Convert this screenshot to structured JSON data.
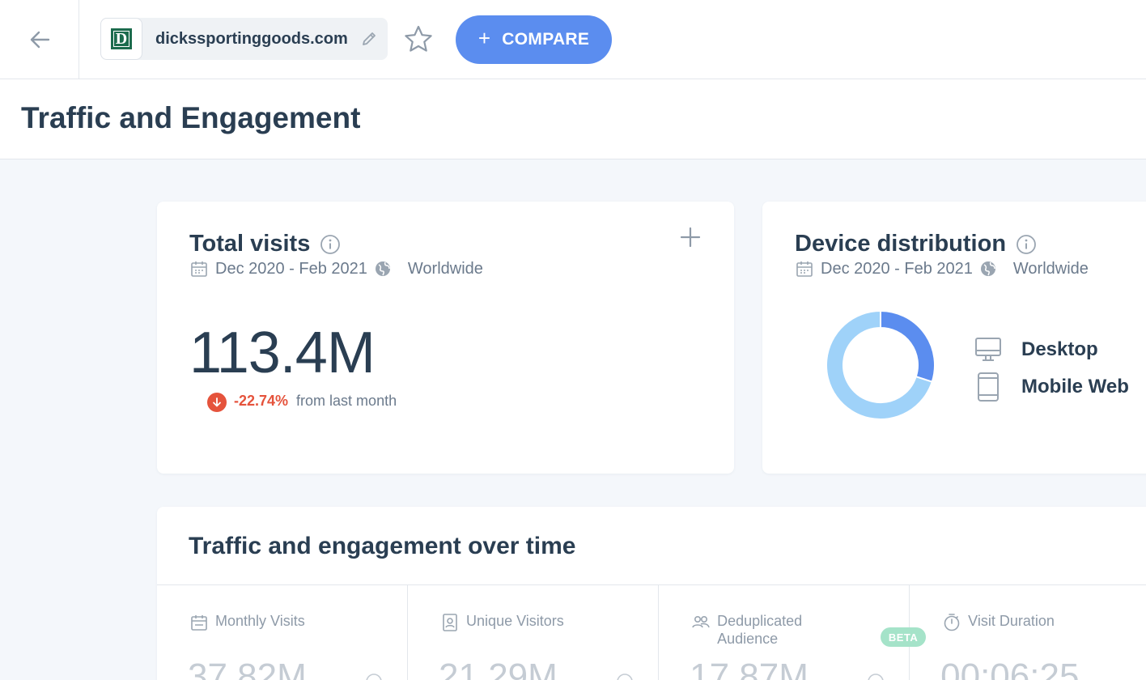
{
  "header": {
    "site_name": "dickssportinggoods.com",
    "favicon_letter": "D",
    "compare_label": "COMPARE"
  },
  "page_title": "Traffic and Engagement",
  "total_visits": {
    "title": "Total visits",
    "date_range": "Dec 2020 - Feb 2021",
    "region": "Worldwide",
    "value": "113.4M",
    "change_pct": "-22.74%",
    "change_text": "from last month"
  },
  "device_distribution": {
    "title": "Device distribution",
    "date_range": "Dec 2020 - Feb 2021",
    "region": "Worldwide",
    "items": [
      {
        "label": "Desktop",
        "color": "#5b8def"
      },
      {
        "label": "Mobile Web",
        "color": "#9fd2f9"
      }
    ]
  },
  "chart_data": {
    "type": "pie",
    "categories": [
      "Desktop",
      "Mobile Web"
    ],
    "values": [
      30,
      70
    ]
  },
  "traffic_over_time": {
    "title": "Traffic and engagement over time",
    "metrics": [
      {
        "label": "Monthly Visits",
        "value": "37.82M"
      },
      {
        "label": "Unique Visitors",
        "value": "21.29M"
      },
      {
        "label": "Deduplicated Audience",
        "value": "17.87M",
        "badge": "BETA"
      },
      {
        "label": "Visit Duration",
        "value": "00:06:25"
      }
    ]
  }
}
